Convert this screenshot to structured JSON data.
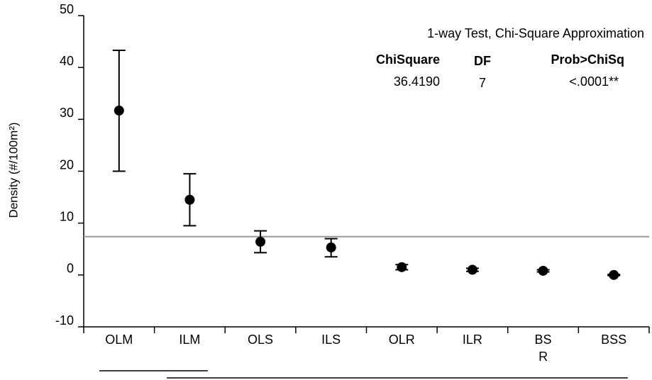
{
  "chart_data": {
    "type": "errorbar",
    "ylabel": "Density (#/100m²)",
    "categories": [
      "OLM",
      "ILM",
      "OLS",
      "ILS",
      "OLR",
      "ILR",
      "BS\nR",
      "BSS"
    ],
    "values": [
      31.7,
      14.5,
      6.4,
      5.3,
      1.5,
      1.0,
      0.8,
      0.0
    ],
    "upper": [
      43.3,
      19.5,
      8.5,
      7.0,
      2.0,
      1.3,
      1.0,
      0.1
    ],
    "lower": [
      20.0,
      9.5,
      4.3,
      3.5,
      1.0,
      0.7,
      0.6,
      -0.1
    ],
    "reference_line": 7.4,
    "color": "#000000",
    "reference_color": "#999999",
    "ylim": [
      -10,
      50
    ],
    "yticks": [
      -10,
      0,
      10,
      20,
      30,
      40,
      50
    ],
    "annotation": {
      "title": "1-way Test, Chi-Square Approximation",
      "headers": [
        "ChiSquare",
        "DF",
        "Prob>ChiSq"
      ],
      "row": [
        "36.4190",
        "7",
        "<.0001**"
      ]
    }
  }
}
